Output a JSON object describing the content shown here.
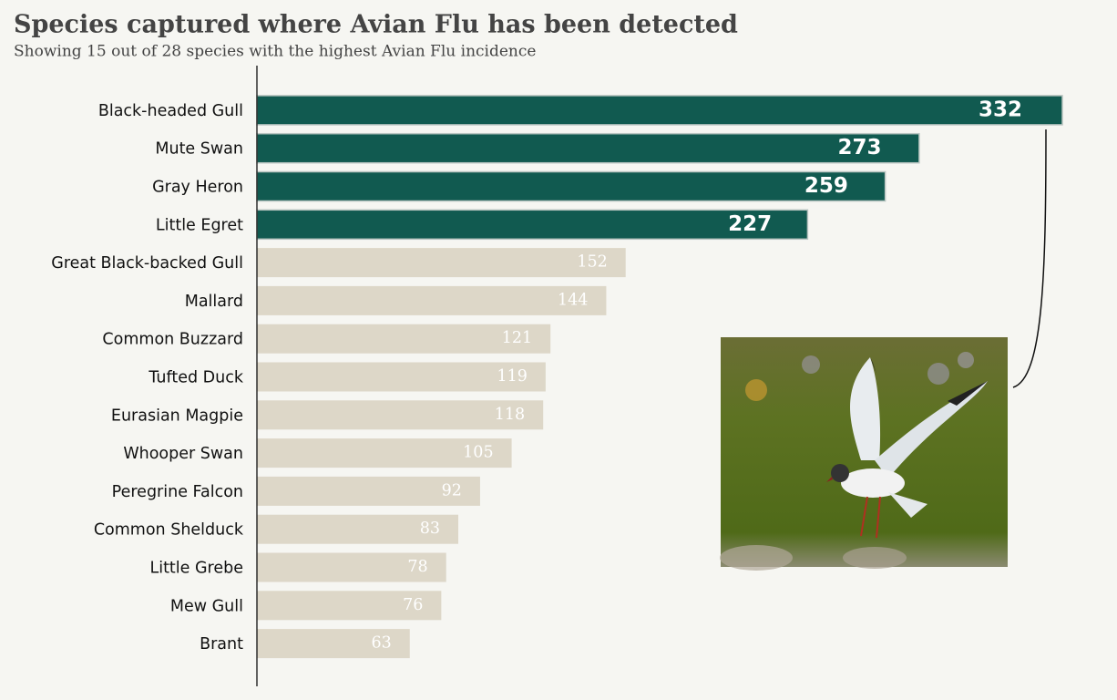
{
  "chart_data": {
    "type": "barh",
    "title": "Species captured where Avian Flu has been detected",
    "subtitle": "Showing 15 out of 28 species with the highest Avian Flu incidence",
    "categories": [
      "Black-headed Gull",
      "Mute Swan",
      "Gray Heron",
      "Little Egret",
      "Great Black-backed Gull",
      "Mallard",
      "Common Buzzard",
      "Tufted Duck",
      "Eurasian Magpie",
      "Whooper Swan",
      "Peregrine Falcon",
      "Common Shelduck",
      "Little Grebe",
      "Mew Gull",
      "Brant"
    ],
    "values": [
      332,
      273,
      259,
      227,
      152,
      144,
      121,
      119,
      118,
      105,
      92,
      83,
      78,
      76,
      63
    ],
    "colors": [
      "#115a50",
      "#115a50",
      "#115a50",
      "#115a50",
      "#ddd7c8",
      "#ddd7c8",
      "#ddd7c8",
      "#ddd7c8",
      "#ddd7c8",
      "#ddd7c8",
      "#ddd7c8",
      "#ddd7c8",
      "#ddd7c8",
      "#ddd7c8",
      "#ddd7c8"
    ]
  }
}
